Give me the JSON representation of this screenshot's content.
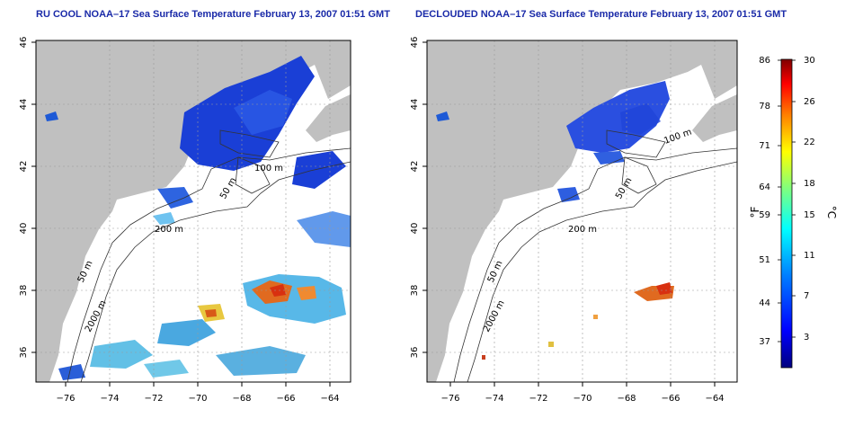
{
  "panels": [
    {
      "title": "RU COOL NOAA–17 Sea Surface Temperature February 13, 2007 01:51 GMT",
      "x_ticks": [
        "−76",
        "−74",
        "−72",
        "−70",
        "−68",
        "−66",
        "−64"
      ],
      "y_ticks": [
        "36",
        "38",
        "40",
        "42",
        "44",
        "46"
      ],
      "contour_labels": [
        "100 m",
        "50 m",
        "200 m",
        "50 m",
        "2000 m"
      ]
    },
    {
      "title": "DECLOUDED NOAA–17 Sea Surface Temperature February 13, 2007 01:51 GMT",
      "x_ticks": [
        "−76",
        "−74",
        "−72",
        "−70",
        "−68",
        "−66",
        "−64"
      ],
      "y_ticks": [
        "36",
        "38",
        "40",
        "42",
        "44",
        "46"
      ],
      "contour_labels": [
        "100 m",
        "50 m",
        "200 m",
        "50 m",
        "2000 m"
      ]
    }
  ],
  "colorbar": {
    "left_unit": "°F",
    "right_unit": "°C",
    "fahrenheit_ticks": [
      "86",
      "78",
      "71",
      "64",
      "59",
      "51",
      "44",
      "37"
    ],
    "celsius_ticks": [
      "30",
      "26",
      "22",
      "18",
      "15",
      "11",
      "7",
      "3"
    ],
    "colors": [
      "#00007f",
      "#0000ff",
      "#007fff",
      "#00ffff",
      "#7fff7f",
      "#ffff00",
      "#ff7f00",
      "#ff0000",
      "#7f0000"
    ]
  }
}
